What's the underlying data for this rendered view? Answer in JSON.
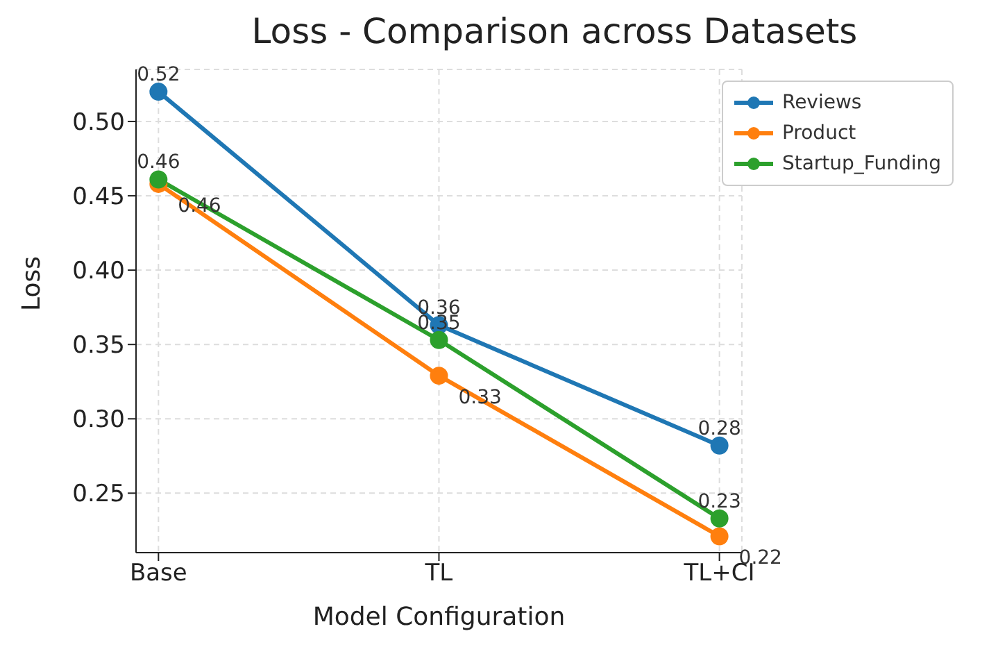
{
  "chart_data": {
    "type": "line",
    "title": "Loss - Comparison across Datasets",
    "xlabel": "Model Configuration",
    "ylabel": "Loss",
    "categories": [
      "Base",
      "TL",
      "TL+CI"
    ],
    "series": [
      {
        "name": "Reviews",
        "color": "#1f77b4",
        "values": [
          0.52,
          0.363,
          0.282
        ],
        "value_labels": [
          "0.52",
          "0.36",
          "0.28"
        ]
      },
      {
        "name": "Product",
        "color": "#ff7f0e",
        "values": [
          0.458,
          0.329,
          0.221
        ],
        "value_labels": [
          "0.46",
          "0.33",
          "0.22"
        ]
      },
      {
        "name": "Startup_Funding",
        "color": "#2ca02c",
        "values": [
          0.461,
          0.353,
          0.233
        ],
        "value_labels": [
          "0.46",
          "0.35",
          "0.23"
        ]
      }
    ],
    "ylim": [
      0.21,
      0.535
    ],
    "yticks": [
      0.25,
      {
        "value": 0.3,
        "label": "0.30"
      },
      0.35,
      {
        "value": 0.4,
        "label": "0.40"
      },
      0.45,
      {
        "value": 0.5,
        "label": "0.50"
      }
    ],
    "grid": true,
    "legend": "top right",
    "marker": "circle",
    "line_style": "solid"
  }
}
